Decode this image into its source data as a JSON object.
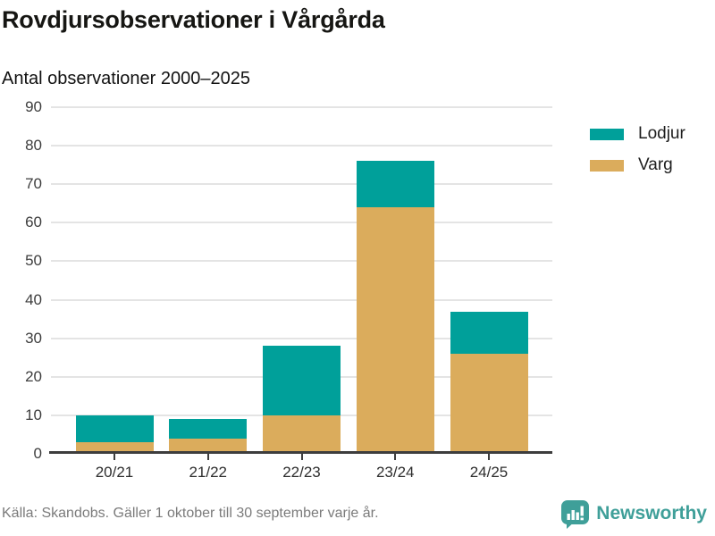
{
  "header": {
    "title": "Rovdjursobservationer i Vårgårda",
    "subtitle": "Antal observationer 2000–2025"
  },
  "chart_data": {
    "type": "bar",
    "stacked": true,
    "title": "Rovdjursobservationer i Vårgårda",
    "subtitle": "Antal observationer 2000–2025",
    "categories": [
      "20/21",
      "21/22",
      "22/23",
      "23/24",
      "24/25"
    ],
    "series": [
      {
        "name": "Varg",
        "color": "#DBAC5C",
        "values": [
          3,
          4,
          10,
          64,
          26
        ]
      },
      {
        "name": "Lodjur",
        "color": "#00A09A",
        "values": [
          7,
          5,
          18,
          12,
          11
        ]
      }
    ],
    "stack_totals": [
      10,
      9,
      28,
      76,
      37
    ],
    "xlabel": "",
    "ylabel": "",
    "ylim": [
      0,
      90
    ],
    "ytick_step": 10,
    "grid": true,
    "legend_position": "top-right"
  },
  "legend": {
    "items": [
      {
        "label": "Lodjur",
        "color": "#00A09A"
      },
      {
        "label": "Varg",
        "color": "#DBAC5C"
      }
    ]
  },
  "footer": {
    "source": "Källa: Skandobs. Gäller 1 oktober till 30 september varje år.",
    "brand": "Newsworthy"
  },
  "colors": {
    "lodjur": "#00A09A",
    "varg": "#DBAC5C",
    "grid": "#E4E4E4",
    "axis": "#3D3D3D",
    "brand": "#3F9F99"
  }
}
